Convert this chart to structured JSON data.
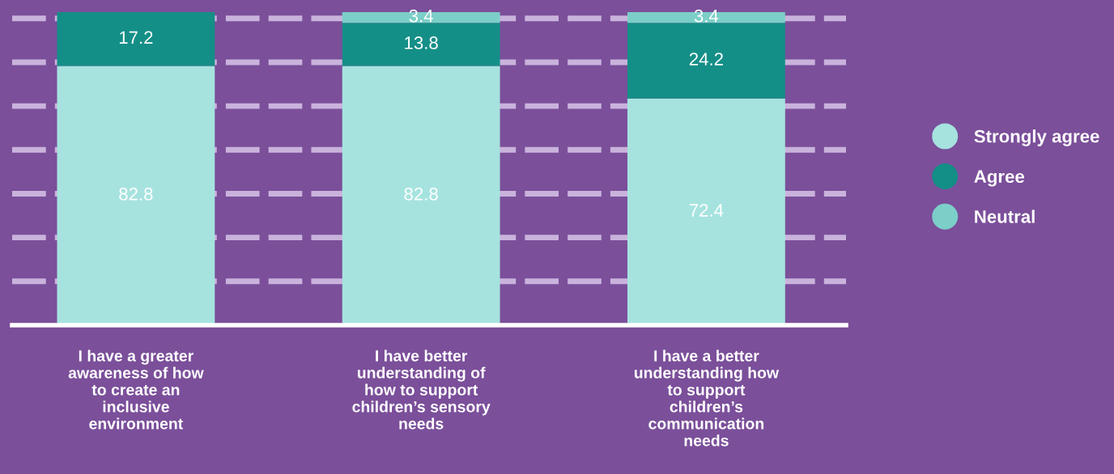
{
  "chart_data": {
    "type": "bar",
    "stacked": true,
    "categories": [
      "I have a greater\nawareness of how\nto create an\ninclusive\nenvironment",
      "I have better\nunderstanding of\nhow to support\nchildren’s sensory\nneeds",
      "I have a better\nunderstanding how\nto support\nchildren’s\ncommunication\nneeds"
    ],
    "series": [
      {
        "name": "Strongly agree",
        "color": "#a6e3df",
        "values": [
          82.8,
          82.8,
          72.4
        ]
      },
      {
        "name": "Agree",
        "color": "#148f87",
        "values": [
          17.2,
          13.8,
          24.2
        ]
      },
      {
        "name": "Neutral",
        "color": "#7ccfc8",
        "values": [
          null,
          3.4,
          3.4
        ]
      }
    ],
    "data_labels": true,
    "ylim": [
      0,
      100
    ],
    "yticks": [
      {
        "value": 14,
        "label": null
      },
      {
        "value": 28,
        "label": null
      },
      {
        "value": 42,
        "label": null
      },
      {
        "value": 56,
        "label": null
      },
      {
        "value": 70,
        "label": null
      },
      {
        "value": 84,
        "label": null
      },
      {
        "value": 98,
        "label": null
      }
    ],
    "grid": "y",
    "tick_labels": "x",
    "legend": "right",
    "marker": "circle"
  }
}
